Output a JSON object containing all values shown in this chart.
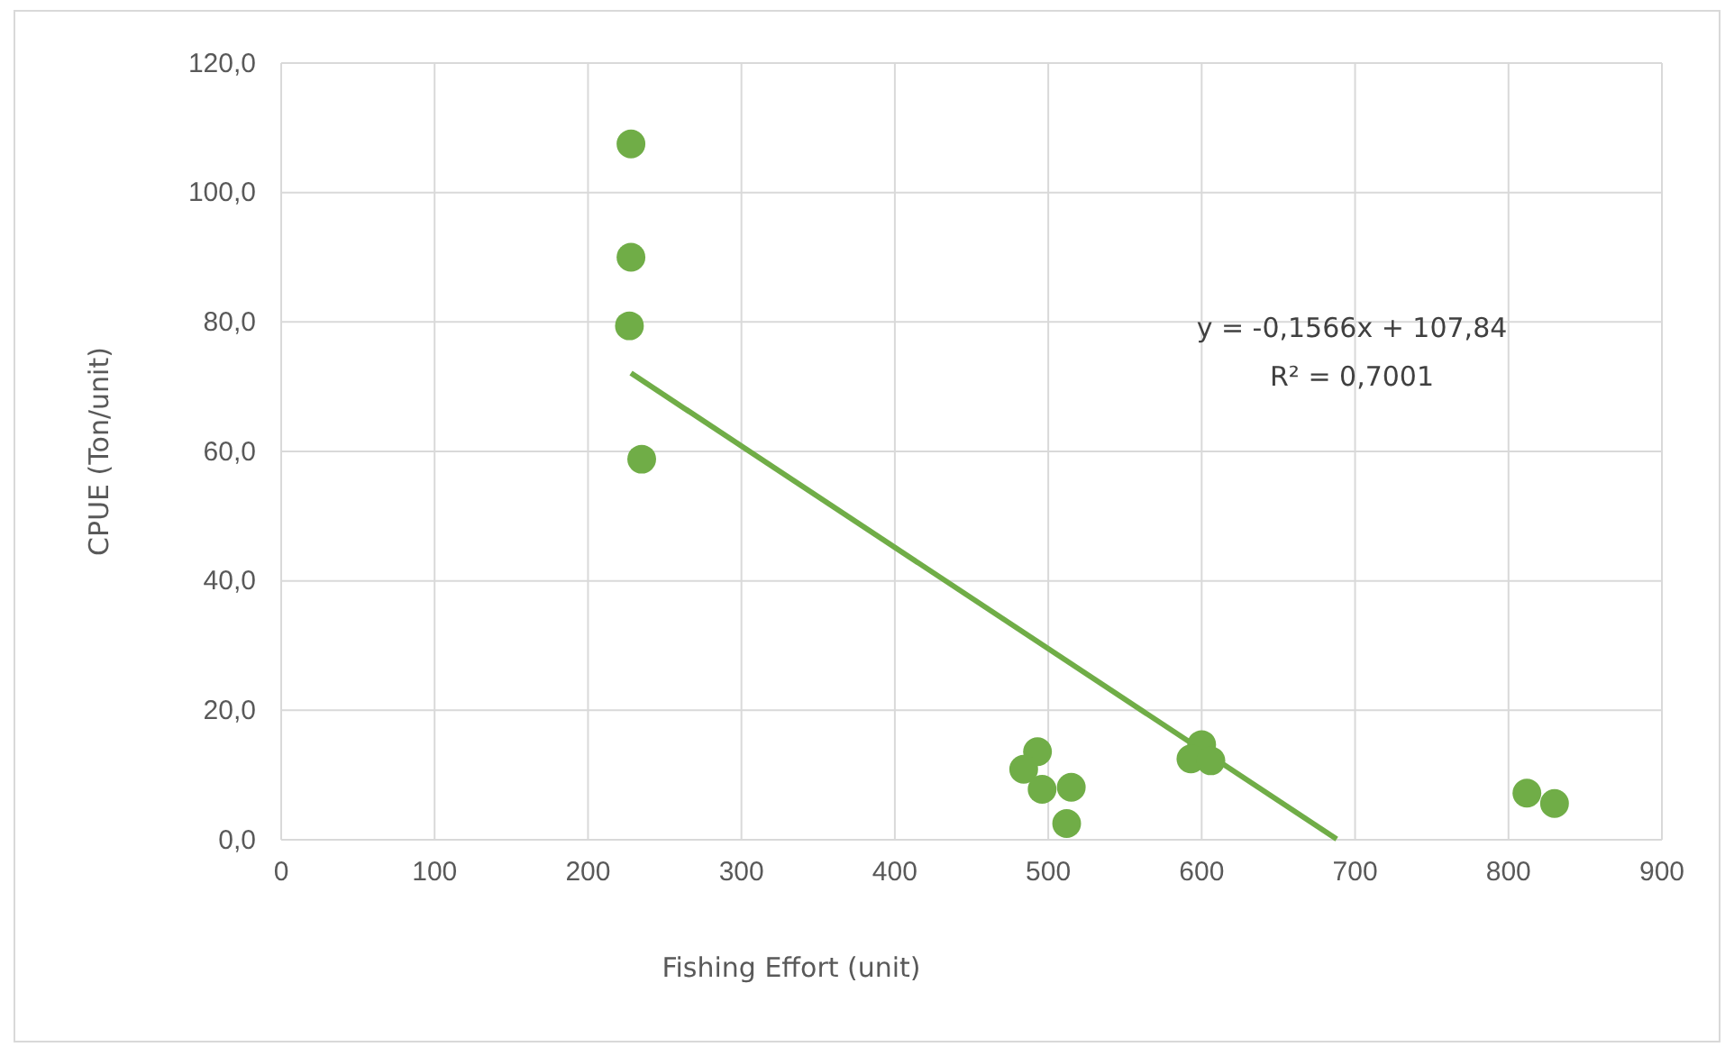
{
  "chart_data": {
    "type": "scatter",
    "xlabel": "Fishing Effort (unit)",
    "ylabel": "CPUE (Ton/unit)",
    "xlim": [
      0,
      900
    ],
    "xticks": [
      0,
      100,
      200,
      300,
      400,
      500,
      600,
      700,
      800,
      900
    ],
    "ylim": [
      0,
      120
    ],
    "yticks": [
      {
        "value": 0,
        "label": "0,0"
      },
      {
        "value": 20,
        "label": "20,0"
      },
      {
        "value": 40,
        "label": "40,0"
      },
      {
        "value": 60,
        "label": "60,0"
      },
      {
        "value": 80,
        "label": "80,0"
      },
      {
        "value": 100,
        "label": "100,0"
      },
      {
        "value": 120,
        "label": "120,0"
      }
    ],
    "grid": true,
    "series": [
      {
        "marker": "circle",
        "color": "#70ad47",
        "x": [
          228,
          228,
          227,
          235,
          493,
          484,
          496,
          515,
          512,
          600,
          593,
          606,
          812,
          830
        ],
        "values": [
          107.5,
          90.0,
          79.4,
          58.8,
          13.6,
          10.9,
          7.8,
          8.1,
          2.5,
          14.7,
          12.5,
          12.2,
          7.2,
          5.6
        ]
      },
      {
        "type": "line",
        "color": "#70ad47",
        "x": [
          228,
          688
        ],
        "values": [
          72.1,
          0.1
        ]
      }
    ],
    "annotations": [
      "y = -0,1566x + 107,84",
      "R² = 0,7001"
    ]
  }
}
